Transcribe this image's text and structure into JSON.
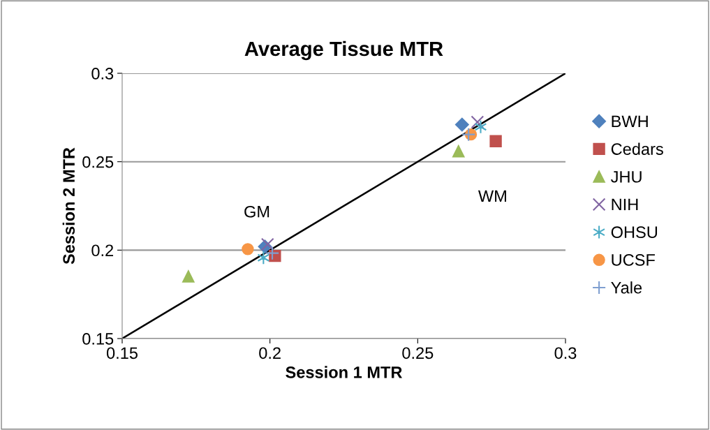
{
  "chart_data": {
    "type": "scatter",
    "title": "Average Tissue MTR",
    "xlabel": "Session 1 MTR",
    "ylabel": "Session 2 MTR",
    "xlim": [
      0.15,
      0.3
    ],
    "ylim": [
      0.15,
      0.3
    ],
    "xticks": [
      0.15,
      0.2,
      0.25,
      0.3
    ],
    "yticks": [
      0.15,
      0.2,
      0.25,
      0.3
    ],
    "grid": "y",
    "legend": "right",
    "series": [
      {
        "name": "BWH",
        "color": "#4f81bd",
        "x": [
          0.1983,
          0.265
        ],
        "values": [
          0.202,
          0.271
        ]
      },
      {
        "name": "Cedars",
        "color": "#c0504d",
        "x": [
          0.2017,
          0.2764
        ],
        "values": [
          0.1967,
          0.2616
        ]
      },
      {
        "name": "JHU",
        "color": "#9bbb59",
        "x": [
          0.1724,
          0.2638
        ],
        "values": [
          0.1851,
          0.2559
        ]
      },
      {
        "name": "NIH",
        "color": "#8064a2",
        "x": [
          0.1992,
          0.2702
        ],
        "values": [
          0.2033,
          0.2724
        ]
      },
      {
        "name": "OHSU",
        "color": "#4bacc6",
        "x": [
          0.1978,
          0.2713
        ],
        "values": [
          0.1957,
          0.2697
        ]
      },
      {
        "name": "UCSF",
        "color": "#f79646",
        "x": [
          0.1925,
          0.268
        ],
        "values": [
          0.2006,
          0.2654
        ]
      },
      {
        "name": "Yale",
        "color": "#7f9fd0",
        "x": [
          0.2008,
          0.2672
        ],
        "values": [
          0.1983,
          0.2654
        ]
      },
      {
        "type": "line",
        "color": "#000000",
        "x": [
          0.15,
          0.3
        ],
        "values": [
          0.15,
          0.3
        ]
      }
    ],
    "annotations": [
      "GM",
      "WM"
    ]
  }
}
